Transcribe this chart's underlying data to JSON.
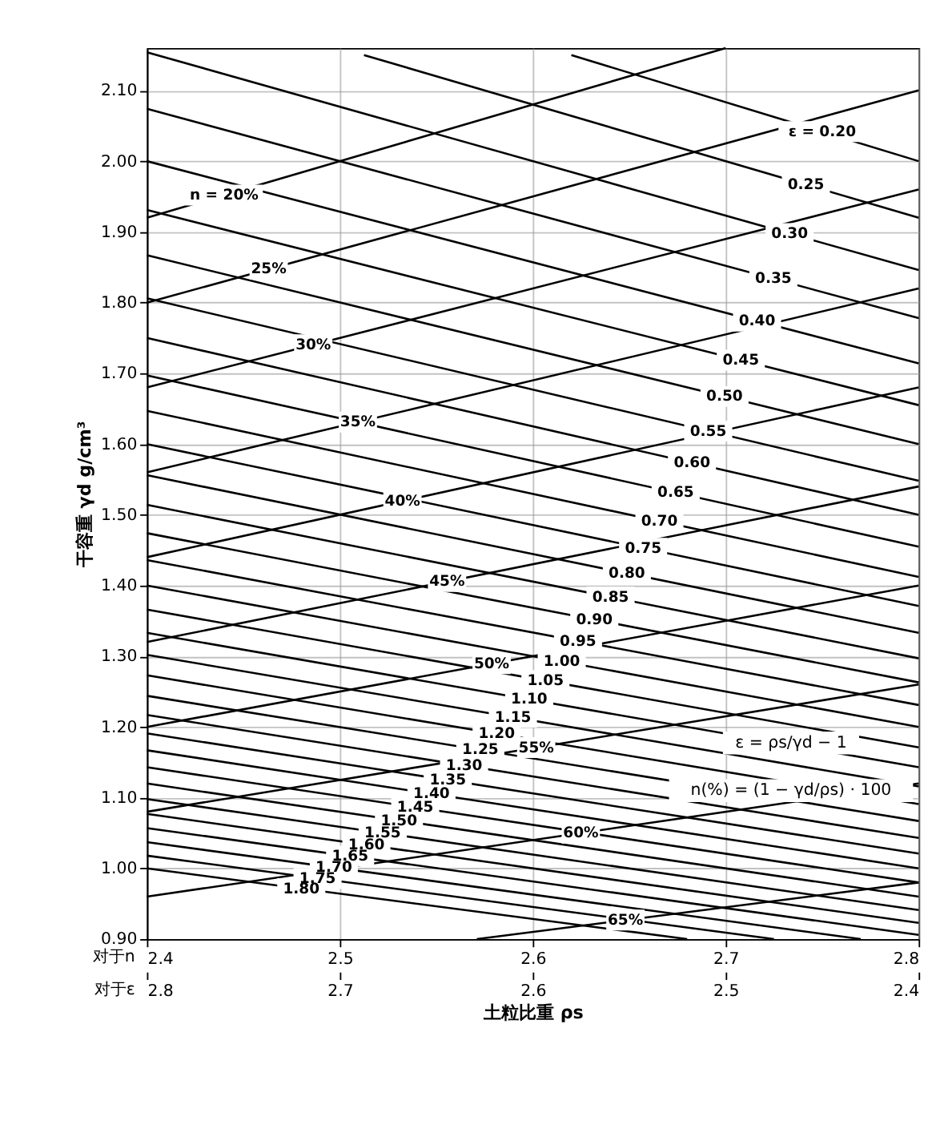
{
  "chart_data": {
    "type": "line",
    "xlabel": "土粒比重 ρs",
    "ylabel": "干容重 γd g/cm³",
    "xlim": [
      2.4,
      2.8
    ],
    "xticks": [
      2.4,
      2.5,
      2.6,
      2.7,
      2.8
    ],
    "x2lim": [
      2.8,
      2.4
    ],
    "x2ticks": [
      2.8,
      2.7,
      2.6,
      2.5,
      2.4
    ],
    "ylim": [
      0.9,
      2.16
    ],
    "yticks": [
      {
        "value": 0.9,
        "label": "0.90"
      },
      {
        "value": 1.0,
        "label": "1.00"
      },
      {
        "value": 1.1,
        "label": "1.10"
      },
      {
        "value": 1.2,
        "label": "1.20"
      },
      {
        "value": 1.3,
        "label": "1.30"
      },
      {
        "value": 1.4,
        "label": "1.40"
      },
      {
        "value": 1.5,
        "label": "1.50"
      },
      {
        "value": 1.6,
        "label": "1.60"
      },
      {
        "value": 1.7,
        "label": "1.70"
      },
      {
        "value": 1.8,
        "label": "1.80"
      },
      {
        "value": 1.9,
        "label": "1.90"
      },
      {
        "value": 2.0,
        "label": "2.00"
      },
      {
        "value": 2.1,
        "label": "2.10"
      }
    ],
    "grid": true,
    "legend": false,
    "marker": "none",
    "line_style": "solid",
    "annotations": [
      "对于n",
      "对于ε",
      "ε = ρs/γd − 1",
      "n(%) = (1 − γd/ρs) · 100"
    ],
    "series": [
      {
        "name": "n = 20%",
        "color": "#000000",
        "x": [
          2.4,
          2.7
        ],
        "values": [
          1.92,
          2.16
        ]
      },
      {
        "name": "25%",
        "color": "#000000",
        "x": [
          2.4,
          2.8
        ],
        "values": [
          1.8,
          2.1
        ]
      },
      {
        "name": "30%",
        "color": "#000000",
        "x": [
          2.4,
          2.8
        ],
        "values": [
          1.68,
          1.96
        ]
      },
      {
        "name": "35%",
        "color": "#000000",
        "x": [
          2.4,
          2.8
        ],
        "values": [
          1.56,
          1.82
        ]
      },
      {
        "name": "40%",
        "color": "#000000",
        "x": [
          2.4,
          2.8
        ],
        "values": [
          1.44,
          1.68
        ]
      },
      {
        "name": "45%",
        "color": "#000000",
        "x": [
          2.4,
          2.8
        ],
        "values": [
          1.32,
          1.54
        ]
      },
      {
        "name": "50%",
        "color": "#000000",
        "x": [
          2.4,
          2.8
        ],
        "values": [
          1.2,
          1.4
        ]
      },
      {
        "name": "55%",
        "color": "#000000",
        "x": [
          2.4,
          2.8
        ],
        "values": [
          1.08,
          1.26
        ]
      },
      {
        "name": "60%",
        "color": "#000000",
        "x": [
          2.4,
          2.8
        ],
        "values": [
          0.96,
          1.12
        ]
      },
      {
        "name": "65%",
        "color": "#000000",
        "x": [
          2.571,
          2.8
        ],
        "values": [
          0.9,
          0.98
        ]
      },
      {
        "name": "ε = 0.20",
        "color": "#000000",
        "axis": "x2",
        "x": [
          2.58,
          2.4
        ],
        "values": [
          2.15,
          2.0
        ]
      },
      {
        "name": "0.25",
        "color": "#000000",
        "axis": "x2",
        "x": [
          2.6875,
          2.4
        ],
        "values": [
          2.15,
          1.92
        ]
      },
      {
        "name": "0.30",
        "color": "#000000",
        "axis": "x2",
        "x": [
          2.8,
          2.4
        ],
        "values": [
          2.154,
          1.846
        ]
      },
      {
        "name": "0.35",
        "color": "#000000",
        "axis": "x2",
        "x": [
          2.8,
          2.4
        ],
        "values": [
          2.074,
          1.778
        ]
      },
      {
        "name": "0.40",
        "color": "#000000",
        "axis": "x2",
        "x": [
          2.8,
          2.4
        ],
        "values": [
          2.0,
          1.714
        ]
      },
      {
        "name": "0.45",
        "color": "#000000",
        "axis": "x2",
        "x": [
          2.8,
          2.4
        ],
        "values": [
          1.931,
          1.655
        ]
      },
      {
        "name": "0.50",
        "color": "#000000",
        "axis": "x2",
        "x": [
          2.8,
          2.4
        ],
        "values": [
          1.867,
          1.6
        ]
      },
      {
        "name": "0.55",
        "color": "#000000",
        "axis": "x2",
        "x": [
          2.8,
          2.4
        ],
        "values": [
          1.806,
          1.548
        ]
      },
      {
        "name": "0.60",
        "color": "#000000",
        "axis": "x2",
        "x": [
          2.8,
          2.4
        ],
        "values": [
          1.75,
          1.5
        ]
      },
      {
        "name": "0.65",
        "color": "#000000",
        "axis": "x2",
        "x": [
          2.8,
          2.4
        ],
        "values": [
          1.697,
          1.455
        ]
      },
      {
        "name": "0.70",
        "color": "#000000",
        "axis": "x2",
        "x": [
          2.8,
          2.4
        ],
        "values": [
          1.647,
          1.412
        ]
      },
      {
        "name": "0.75",
        "color": "#000000",
        "axis": "x2",
        "x": [
          2.8,
          2.4
        ],
        "values": [
          1.6,
          1.371
        ]
      },
      {
        "name": "0.80",
        "color": "#000000",
        "axis": "x2",
        "x": [
          2.8,
          2.4
        ],
        "values": [
          1.556,
          1.333
        ]
      },
      {
        "name": "0.85",
        "color": "#000000",
        "axis": "x2",
        "x": [
          2.8,
          2.4
        ],
        "values": [
          1.514,
          1.297
        ]
      },
      {
        "name": "0.90",
        "color": "#000000",
        "axis": "x2",
        "x": [
          2.8,
          2.4
        ],
        "values": [
          1.474,
          1.263
        ]
      },
      {
        "name": "0.95",
        "color": "#000000",
        "axis": "x2",
        "x": [
          2.8,
          2.4
        ],
        "values": [
          1.436,
          1.231
        ]
      },
      {
        "name": "1.00",
        "color": "#000000",
        "axis": "x2",
        "x": [
          2.8,
          2.4
        ],
        "values": [
          1.4,
          1.2
        ]
      },
      {
        "name": "1.05",
        "color": "#000000",
        "axis": "x2",
        "x": [
          2.8,
          2.4
        ],
        "values": [
          1.366,
          1.171
        ]
      },
      {
        "name": "1.10",
        "color": "#000000",
        "axis": "x2",
        "x": [
          2.8,
          2.4
        ],
        "values": [
          1.333,
          1.143
        ]
      },
      {
        "name": "1.15",
        "color": "#000000",
        "axis": "x2",
        "x": [
          2.8,
          2.4
        ],
        "values": [
          1.302,
          1.116
        ]
      },
      {
        "name": "1.20",
        "color": "#000000",
        "axis": "x2",
        "x": [
          2.8,
          2.4
        ],
        "values": [
          1.273,
          1.091
        ]
      },
      {
        "name": "1.25",
        "color": "#000000",
        "axis": "x2",
        "x": [
          2.8,
          2.4
        ],
        "values": [
          1.244,
          1.067
        ]
      },
      {
        "name": "1.30",
        "color": "#000000",
        "axis": "x2",
        "x": [
          2.8,
          2.4
        ],
        "values": [
          1.217,
          1.043
        ]
      },
      {
        "name": "1.35",
        "color": "#000000",
        "axis": "x2",
        "x": [
          2.8,
          2.4
        ],
        "values": [
          1.191,
          1.021
        ]
      },
      {
        "name": "1.40",
        "color": "#000000",
        "axis": "x2",
        "x": [
          2.8,
          2.4
        ],
        "values": [
          1.167,
          1.0
        ]
      },
      {
        "name": "1.45",
        "color": "#000000",
        "axis": "x2",
        "x": [
          2.8,
          2.4
        ],
        "values": [
          1.143,
          0.98
        ]
      },
      {
        "name": "1.50",
        "color": "#000000",
        "axis": "x2",
        "x": [
          2.8,
          2.4
        ],
        "values": [
          1.12,
          0.96
        ]
      },
      {
        "name": "1.55",
        "color": "#000000",
        "axis": "x2",
        "x": [
          2.8,
          2.4
        ],
        "values": [
          1.098,
          0.941
        ]
      },
      {
        "name": "1.60",
        "color": "#000000",
        "axis": "x2",
        "x": [
          2.8,
          2.4
        ],
        "values": [
          1.077,
          0.923
        ]
      },
      {
        "name": "1.65",
        "color": "#000000",
        "axis": "x2",
        "x": [
          2.8,
          2.4
        ],
        "values": [
          1.057,
          0.906
        ]
      },
      {
        "name": "1.70",
        "color": "#000000",
        "axis": "x2",
        "x": [
          2.8,
          2.43
        ],
        "values": [
          1.037,
          0.9
        ]
      },
      {
        "name": "1.75",
        "color": "#000000",
        "axis": "x2",
        "x": [
          2.8,
          2.475
        ],
        "values": [
          1.018,
          0.9
        ]
      },
      {
        "name": "1.80",
        "color": "#000000",
        "axis": "x2",
        "x": [
          2.8,
          2.52
        ],
        "values": [
          1.0,
          0.9
        ]
      }
    ]
  }
}
